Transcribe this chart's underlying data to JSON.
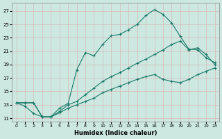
{
  "xlabel": "Humidex (Indice chaleur)",
  "bg_color": "#cce8e0",
  "grid_color": "#b0d4cc",
  "line_color": "#1a7a6a",
  "xlim": [
    -0.5,
    23.5
  ],
  "ylim": [
    10.5,
    28.2
  ],
  "xticks": [
    0,
    1,
    2,
    3,
    4,
    5,
    6,
    7,
    8,
    9,
    10,
    11,
    12,
    13,
    14,
    15,
    16,
    17,
    18,
    19,
    20,
    21,
    22,
    23
  ],
  "yticks": [
    11,
    13,
    15,
    17,
    19,
    21,
    23,
    25,
    27
  ],
  "line1_x": [
    0,
    1,
    2,
    3,
    4,
    5,
    6,
    7,
    8,
    9,
    10,
    11,
    12,
    13,
    14,
    15,
    16,
    17,
    18,
    19,
    20,
    21,
    22,
    23
  ],
  "line1_y": [
    13.3,
    12.8,
    11.7,
    11.2,
    11.2,
    12.5,
    13.2,
    18.2,
    20.8,
    20.3,
    22.0,
    23.3,
    23.5,
    24.2,
    25.0,
    26.3,
    27.2,
    26.5,
    25.2,
    23.2,
    21.3,
    21.2,
    20.0,
    19.3
  ],
  "line2_x": [
    0,
    1,
    2,
    3,
    4,
    5,
    6,
    7,
    8,
    9,
    10,
    11,
    12,
    13,
    14,
    15,
    16,
    17,
    18,
    19,
    20,
    21,
    22,
    23
  ],
  "line2_y": [
    13.3,
    13.3,
    13.3,
    11.2,
    11.2,
    12.0,
    13.0,
    13.5,
    14.5,
    15.5,
    16.5,
    17.2,
    17.8,
    18.5,
    19.2,
    19.8,
    20.5,
    21.2,
    22.0,
    22.5,
    21.2,
    21.5,
    20.5,
    19.0
  ],
  "line3_x": [
    0,
    1,
    2,
    3,
    4,
    5,
    6,
    7,
    8,
    9,
    10,
    11,
    12,
    13,
    14,
    15,
    16,
    17,
    18,
    19,
    20,
    21,
    22,
    23
  ],
  "line3_y": [
    13.3,
    13.3,
    13.3,
    11.2,
    11.2,
    11.8,
    12.5,
    13.0,
    13.5,
    14.0,
    14.8,
    15.3,
    15.8,
    16.3,
    16.8,
    17.2,
    17.5,
    16.8,
    16.5,
    16.3,
    16.8,
    17.5,
    18.0,
    18.5
  ]
}
